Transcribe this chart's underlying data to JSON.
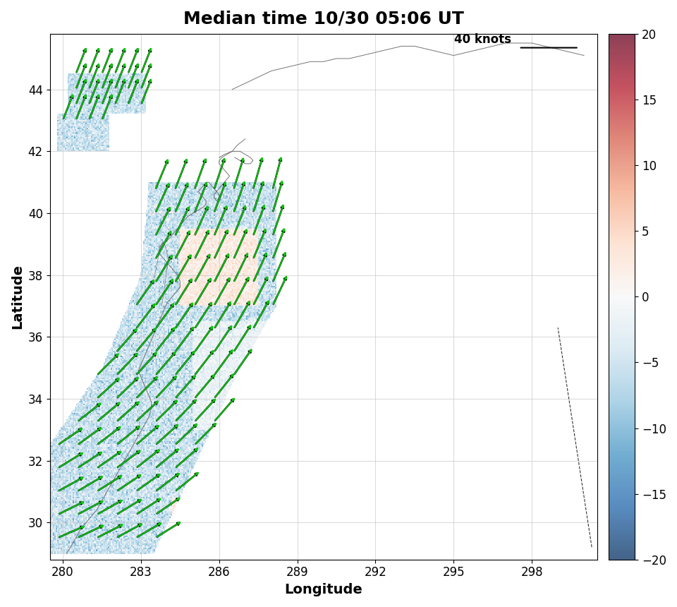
{
  "title": "Median time 10/30 05:06 UT",
  "xlabel": "Longitude",
  "ylabel": "Latitude",
  "lon_min": 279.5,
  "lon_max": 300.5,
  "lat_min": 28.8,
  "lat_max": 45.8,
  "xticks": [
    280,
    283,
    286,
    289,
    292,
    295,
    298
  ],
  "yticks": [
    30,
    32,
    34,
    36,
    38,
    40,
    42,
    44
  ],
  "cmap_vmin": -20,
  "cmap_vmax": 20,
  "colorbar_ticks": [
    -20,
    -15,
    -10,
    -5,
    0,
    5,
    10,
    15,
    20
  ],
  "reference_arrow_speed": 40,
  "reference_arrow_label": "40 knots",
  "background_color": "#ffffff",
  "grid_color": "#cccccc",
  "coastline_color": "#666666",
  "wind_arrow_color": "#00cc00",
  "title_fontsize": 18,
  "label_fontsize": 14,
  "tick_fontsize": 12
}
